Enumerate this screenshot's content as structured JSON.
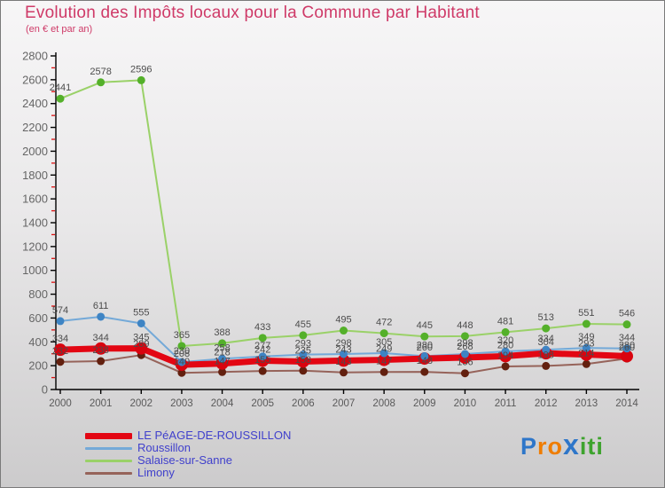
{
  "title": "Evolution des Impôts locaux pour la Commune par Habitant",
  "subtitle": "(en € et par an)",
  "title_color": "#cf3a68",
  "chart_data": {
    "type": "line",
    "x": [
      2000,
      2001,
      2002,
      2003,
      2004,
      2005,
      2006,
      2007,
      2008,
      2009,
      2010,
      2011,
      2012,
      2013,
      2014
    ],
    "series": [
      {
        "name": "LE PéAGE-DE-ROUSSILLON",
        "color": "#e30613",
        "dot_color": "#d9040f",
        "line_width": 7,
        "dot_radius": 7,
        "values": [
          334,
          344,
          345,
          208,
          218,
          242,
          235,
          243,
          249,
          260,
          268,
          280,
          304,
          293,
          280
        ]
      },
      {
        "name": "Roussillon",
        "color": "#74a9d8",
        "dot_color": "#3e84c4",
        "line_width": 2,
        "dot_radius": 4.5,
        "values": [
          574,
          611,
          555,
          230,
          258,
          277,
          293,
          298,
          305,
          280,
          298,
          320,
          334,
          349,
          344
        ]
      },
      {
        "name": "Salaise-sur-Sanne",
        "color": "#9ad168",
        "dot_color": "#54b02a",
        "line_width": 2,
        "dot_radius": 4.5,
        "values": [
          2441,
          2578,
          2596,
          365,
          388,
          433,
          455,
          495,
          472,
          445,
          448,
          481,
          513,
          551,
          546
        ]
      },
      {
        "name": "Limony",
        "color": "#96635a",
        "dot_color": "#63200f",
        "line_width": 2,
        "dot_radius": 4.5,
        "values": [
          232,
          238,
          289,
          140,
          147,
          155,
          158,
          143,
          147,
          148,
          136,
          194,
          198,
          214,
          260
        ]
      }
    ],
    "ylim": [
      0,
      2800
    ],
    "ytick_step": 200,
    "ytick_minor_step": 100,
    "grid": false,
    "legend_position": "bottom-left",
    "label_color": "#4c4c4c",
    "axis_color": "#000000",
    "minor_tick_color": "#dd1111",
    "tick_label_color": "#666666"
  },
  "logo": {
    "letters": [
      {
        "ch": "P",
        "color": "#2e76c9"
      },
      {
        "ch": "r",
        "color": "#ef7d00"
      },
      {
        "ch": "o",
        "color": "#ef7d00"
      },
      {
        "ch": "x",
        "color": "#2e76c9"
      },
      {
        "ch": "i",
        "color": "#3ea32e"
      },
      {
        "ch": "t",
        "color": "#3ea32e"
      },
      {
        "ch": "i",
        "color": "#3ea32e"
      }
    ]
  }
}
